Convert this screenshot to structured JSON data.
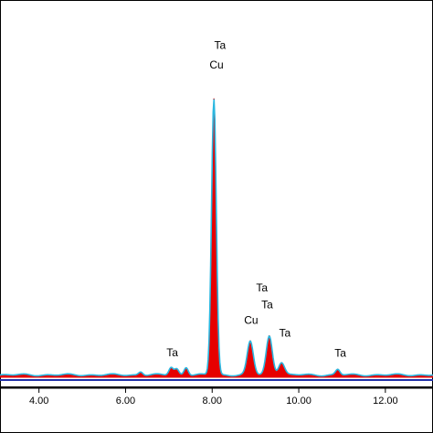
{
  "chart_data": {
    "type": "area",
    "title": "",
    "xlabel": "",
    "ylabel": "",
    "xlim": [
      3.1,
      13.1
    ],
    "ylim": [
      0,
      1
    ],
    "grid": false,
    "legend": "none",
    "x_ticks": [
      {
        "value": 4.0,
        "label": "4.00"
      },
      {
        "value": 6.0,
        "label": "6.00"
      },
      {
        "value": 8.0,
        "label": "8.00"
      },
      {
        "value": 10.0,
        "label": "10.00"
      },
      {
        "value": 12.0,
        "label": "12.00"
      }
    ],
    "peaks": [
      {
        "x": 7.05,
        "y": 0.027
      },
      {
        "x": 7.18,
        "y": 0.021
      },
      {
        "x": 7.4,
        "y": 0.028
      },
      {
        "x": 8.04,
        "y": 0.973
      },
      {
        "x": 8.88,
        "y": 0.118
      },
      {
        "x": 9.32,
        "y": 0.137
      },
      {
        "x": 9.6,
        "y": 0.045
      },
      {
        "x": 10.9,
        "y": 0.019
      },
      {
        "x": 6.35,
        "y": 0.012
      }
    ],
    "annotations": [
      {
        "text": "Ta",
        "x": 7.08,
        "y": 0.075
      },
      {
        "text": "Ta",
        "x": 8.18,
        "y": 1.16
      },
      {
        "text": "Cu",
        "x": 8.1,
        "y": 1.09
      },
      {
        "text": "Ta",
        "x": 9.15,
        "y": 0.305
      },
      {
        "text": "Ta",
        "x": 9.27,
        "y": 0.245
      },
      {
        "text": "Cu",
        "x": 8.9,
        "y": 0.19
      },
      {
        "text": "Ta",
        "x": 9.68,
        "y": 0.145
      },
      {
        "text": "Ta",
        "x": 10.96,
        "y": 0.074
      }
    ],
    "colors": {
      "spectrum_fill": "#e60000",
      "overlay_line": "#2ab7e0",
      "baseline": "#1f2fa8",
      "frame": "#000000"
    }
  }
}
